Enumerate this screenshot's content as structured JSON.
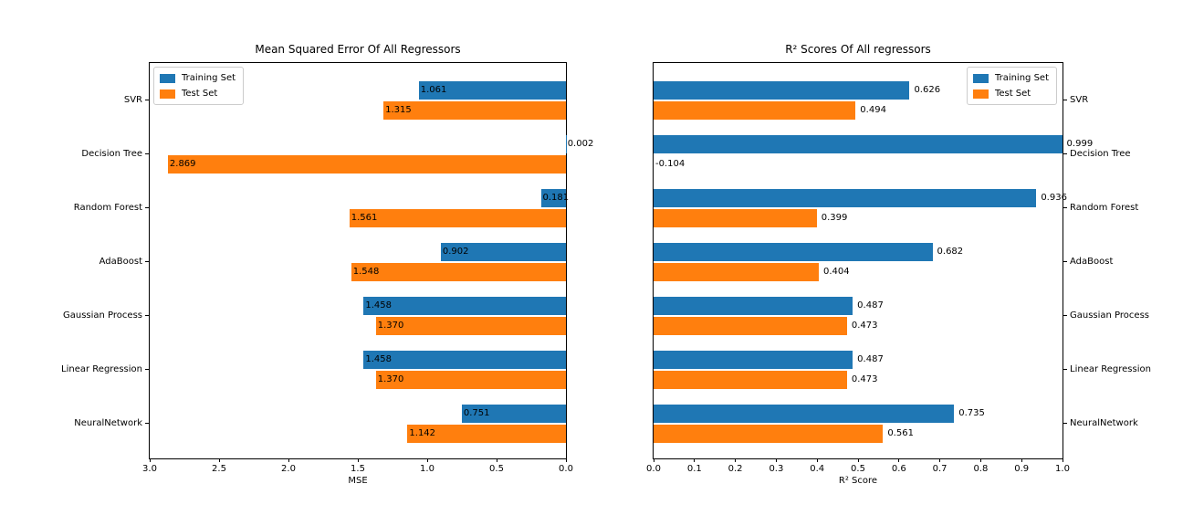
{
  "chart_data": [
    {
      "type": "bar",
      "orientation": "horizontal",
      "title": "Mean Squared Error Of All Regressors",
      "xlabel": "MSE",
      "categories": [
        "SVR",
        "Decision Tree",
        "Random Forest",
        "AdaBoost",
        "Gaussian Process",
        "Linear Regression",
        "NeuralNetwork"
      ],
      "series": [
        {
          "name": "Training Set",
          "color": "#1f77b4",
          "values": [
            1.061,
            0.002,
            0.181,
            0.902,
            1.458,
            1.458,
            0.751
          ]
        },
        {
          "name": "Test Set",
          "color": "#ff7f0e",
          "values": [
            1.315,
            2.869,
            1.561,
            1.548,
            1.37,
            1.37,
            1.142
          ]
        }
      ],
      "xlim": [
        3.0,
        0.0
      ],
      "x_ticks": [
        3.0,
        2.5,
        2.0,
        1.5,
        1.0,
        0.5,
        0.0
      ],
      "x_axis_inverted": true,
      "ytick_side": "left",
      "legend_position": "upper left",
      "value_labels": true,
      "value_label_placement": "at-bar-tip-inside",
      "grid": false
    },
    {
      "type": "bar",
      "orientation": "horizontal",
      "title": "R² Scores Of All regressors",
      "xlabel": "R² Score",
      "categories": [
        "SVR",
        "Decision Tree",
        "Random Forest",
        "AdaBoost",
        "Gaussian Process",
        "Linear Regression",
        "NeuralNetwork"
      ],
      "series": [
        {
          "name": "Training Set",
          "color": "#1f77b4",
          "values": [
            0.626,
            0.999,
            0.936,
            0.682,
            0.487,
            0.487,
            0.735
          ]
        },
        {
          "name": "Test Set",
          "color": "#ff7f0e",
          "values": [
            0.494,
            -0.104,
            0.399,
            0.404,
            0.473,
            0.473,
            0.561
          ]
        }
      ],
      "xlim": [
        0.0,
        1.0
      ],
      "x_ticks": [
        0.0,
        0.1,
        0.2,
        0.3,
        0.4,
        0.5,
        0.6,
        0.7,
        0.8,
        0.9,
        1.0
      ],
      "x_axis_inverted": false,
      "ytick_side": "right",
      "legend_position": "upper right",
      "value_labels": true,
      "value_label_placement": "outside-bar-tip",
      "grid": false
    }
  ]
}
